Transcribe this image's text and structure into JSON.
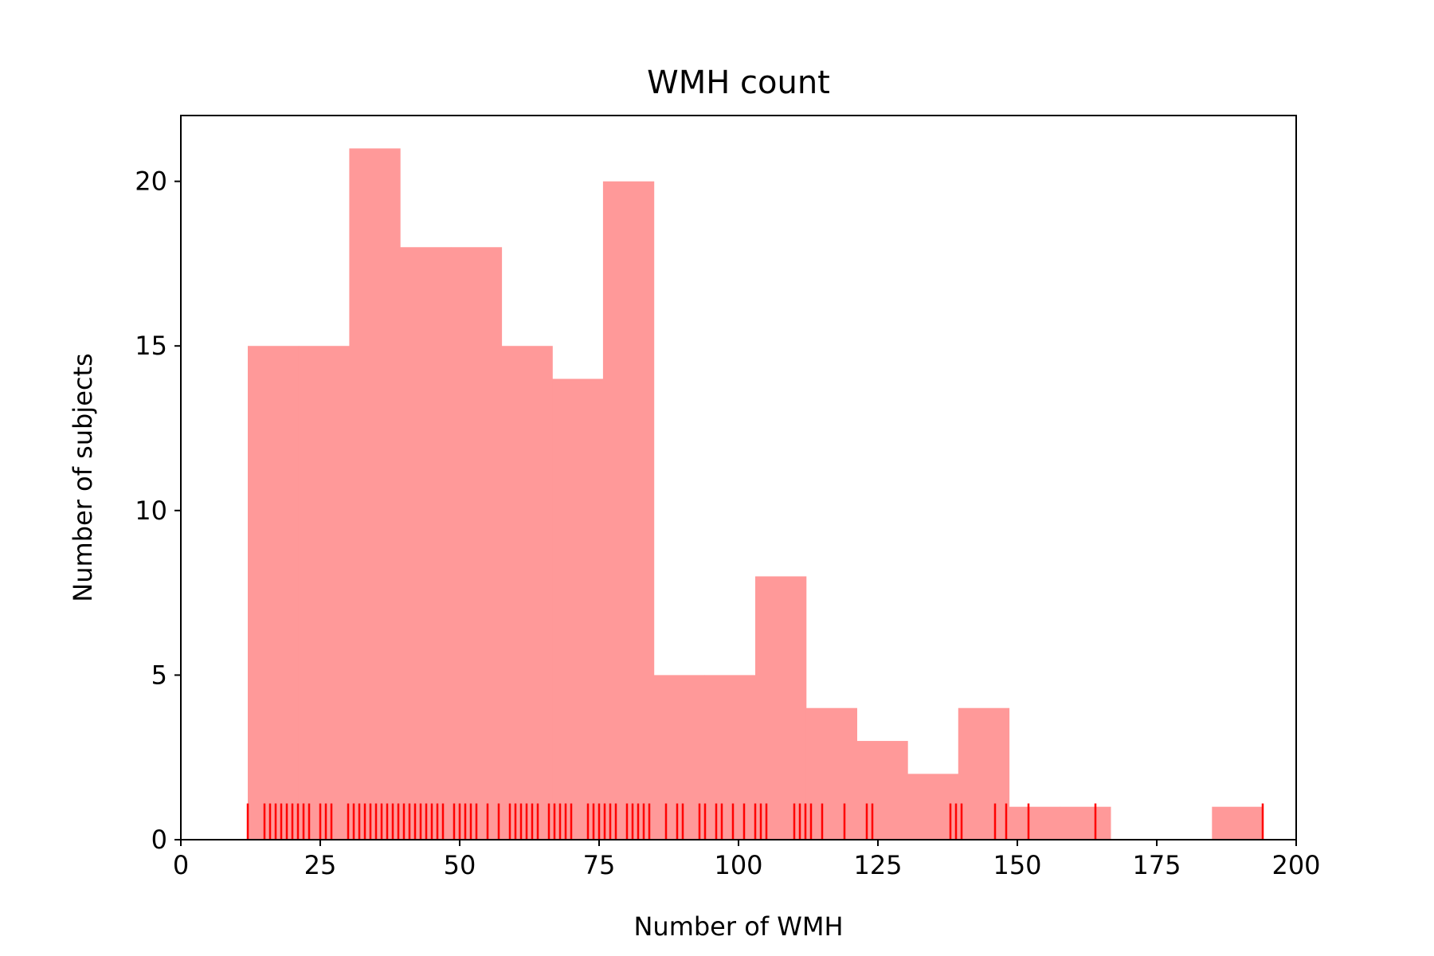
{
  "chart_data": {
    "type": "bar",
    "title": "WMH count",
    "xlabel": "Number of WMH",
    "ylabel": "Number of subjects",
    "xlim": [
      0,
      200
    ],
    "ylim": [
      0,
      22
    ],
    "grid": false,
    "x_ticks": [
      "0",
      "25",
      "50",
      "75",
      "100",
      "125",
      "150",
      "175",
      "200"
    ],
    "y_ticks": [
      "0",
      "5",
      "10",
      "15",
      "20"
    ],
    "bin_edges": [
      12.0,
      21.1,
      30.2,
      39.3,
      48.4,
      57.5,
      66.6,
      75.7,
      84.8,
      93.9,
      103.0,
      112.1,
      121.2,
      130.3,
      139.4,
      148.5,
      157.6,
      166.7,
      175.8,
      184.9,
      194.0
    ],
    "counts": [
      15,
      15,
      21,
      18,
      18,
      15,
      14,
      20,
      5,
      5,
      8,
      4,
      3,
      2,
      4,
      1,
      1,
      0,
      0,
      1
    ],
    "bar_color": "#ff9999",
    "rug_color": "#ff0000",
    "rug_values": [
      12,
      15,
      16,
      17,
      18,
      19,
      20,
      21,
      22,
      23,
      25,
      26,
      27,
      30,
      31,
      32,
      33,
      34,
      35,
      36,
      37,
      38,
      39,
      40,
      41,
      42,
      43,
      44,
      45,
      46,
      47,
      49,
      50,
      51,
      52,
      53,
      55,
      57,
      59,
      60,
      61,
      62,
      63,
      64,
      66,
      67,
      68,
      69,
      70,
      73,
      74,
      75,
      76,
      77,
      78,
      80,
      81,
      82,
      83,
      84,
      87,
      89,
      90,
      93,
      94,
      96,
      97,
      99,
      101,
      103,
      104,
      105,
      110,
      111,
      112,
      113,
      115,
      119,
      123,
      124,
      138,
      139,
      140,
      146,
      148,
      152,
      164,
      194
    ]
  }
}
